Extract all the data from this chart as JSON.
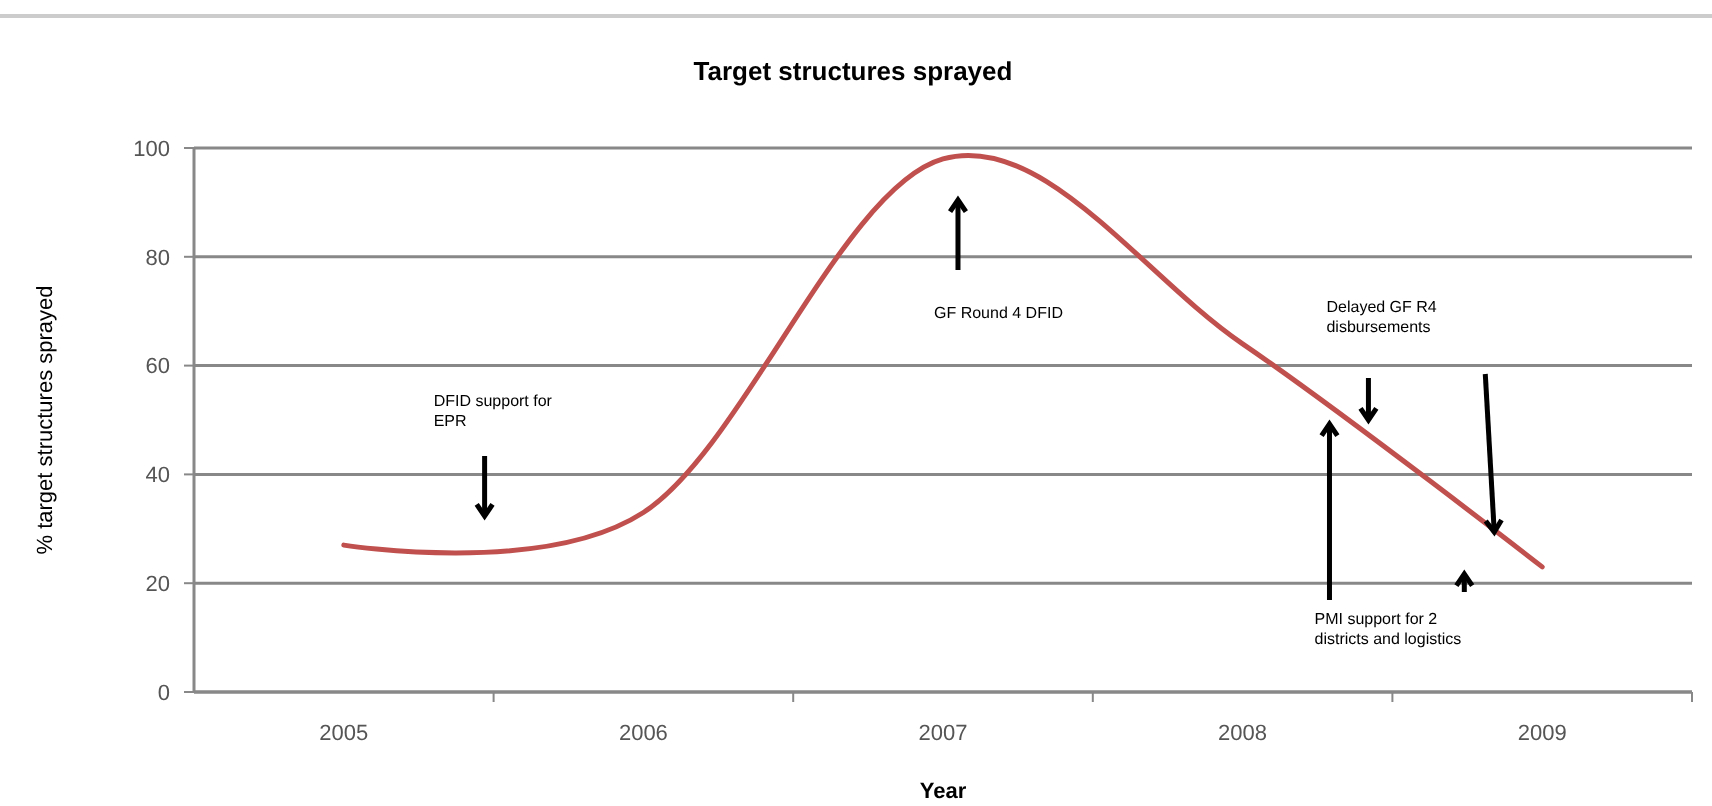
{
  "chart_data": {
    "type": "line",
    "title": "Target structures sprayed",
    "xlabel": "Year",
    "ylabel": "% target structures sprayed",
    "categories": [
      "2005",
      "2006",
      "2007",
      "2008",
      "2009"
    ],
    "series": [
      {
        "color": "#c0504d",
        "values": [
          27,
          33,
          98,
          64,
          23
        ]
      }
    ],
    "ylim": [
      0,
      100
    ],
    "yticks": [
      0,
      20,
      40,
      60,
      80,
      100
    ],
    "grid": "y",
    "marker": "none",
    "line_style": "solid",
    "annotations": [
      "DFID support for EPR",
      "GF Round 4 DFID",
      "Delayed GF R4 disbursements",
      "PMI support for 2 districts and logistics"
    ]
  }
}
